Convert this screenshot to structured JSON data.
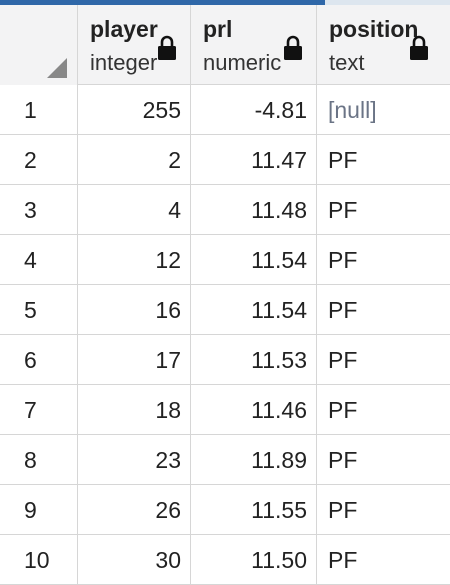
{
  "columns": [
    {
      "name": "player",
      "type": "integer"
    },
    {
      "name": "prl",
      "type": "numeric"
    },
    {
      "name": "position",
      "type": "text"
    }
  ],
  "rows": [
    {
      "num": "1",
      "player": "255",
      "prl": "-4.81",
      "position": "[null]"
    },
    {
      "num": "2",
      "player": "2",
      "prl": "11.47",
      "position": "PF"
    },
    {
      "num": "3",
      "player": "4",
      "prl": "11.48",
      "position": "PF"
    },
    {
      "num": "4",
      "player": "12",
      "prl": "11.54",
      "position": "PF"
    },
    {
      "num": "5",
      "player": "16",
      "prl": "11.54",
      "position": "PF"
    },
    {
      "num": "6",
      "player": "17",
      "prl": "11.53",
      "position": "PF"
    },
    {
      "num": "7",
      "player": "18",
      "prl": "11.46",
      "position": "PF"
    },
    {
      "num": "8",
      "player": "23",
      "prl": "11.89",
      "position": "PF"
    },
    {
      "num": "9",
      "player": "26",
      "prl": "11.55",
      "position": "PF"
    },
    {
      "num": "10",
      "player": "30",
      "prl": "11.50",
      "position": "PF"
    }
  ],
  "colors": {
    "accent": "#2f67a8",
    "null_text": "#6b7486",
    "grid_line": "#d6d6d6",
    "header_bg": "#f3f3f4"
  },
  "icons": {
    "column_lock": "lock-icon",
    "select_all": "select-all-triangle-icon"
  }
}
